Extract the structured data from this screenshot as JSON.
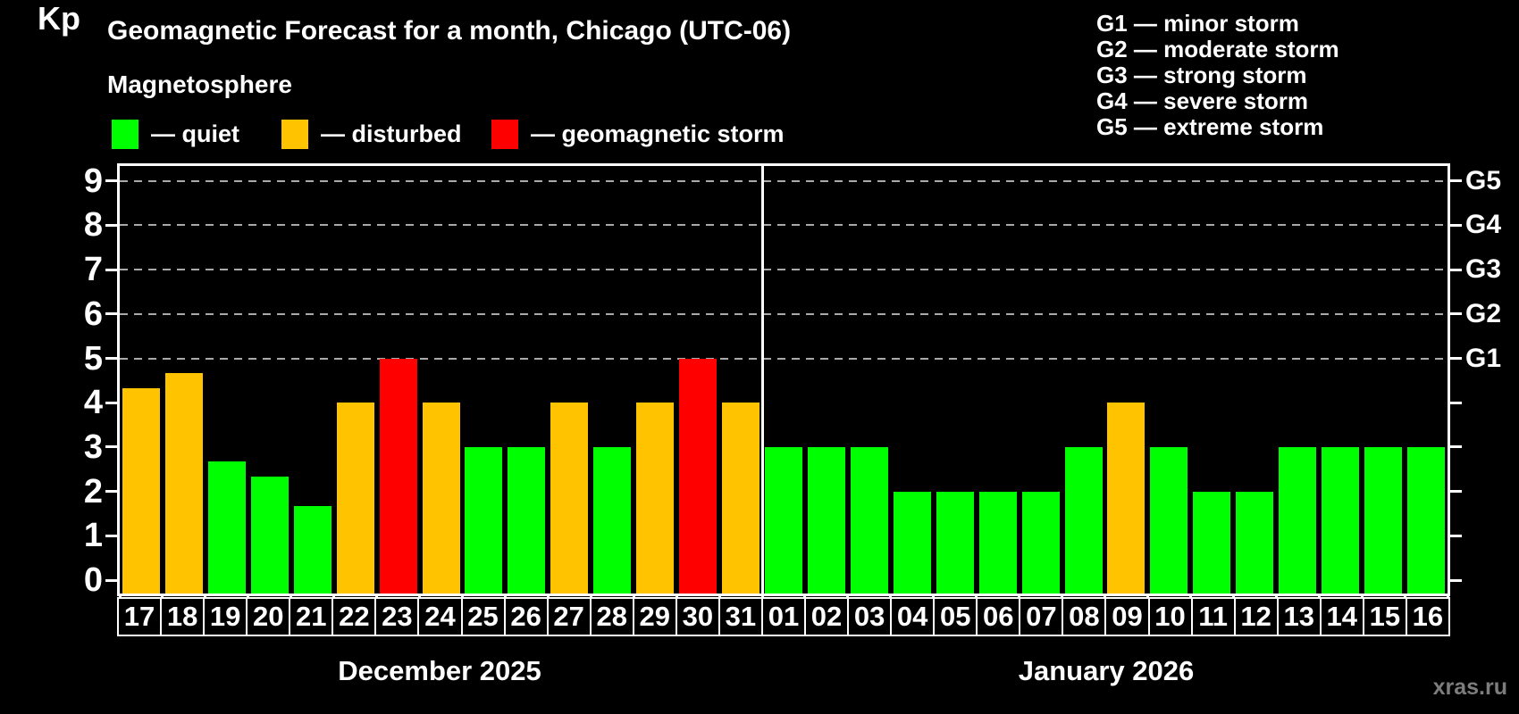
{
  "header": {
    "title": "Geomagnetic Forecast for a month, Chicago (UTC-06)",
    "subtitle": "Magnetosphere"
  },
  "legend": {
    "items": [
      {
        "name": "quiet",
        "label": "— quiet",
        "color": "#00ff00",
        "x": 125
      },
      {
        "name": "disturbed",
        "label": "— disturbed",
        "color": "#ffc300",
        "x": 315
      },
      {
        "name": "storm",
        "label": "— geomagnetic storm",
        "color": "#ff0000",
        "x": 550
      }
    ]
  },
  "g_legend": [
    "G1 — minor storm",
    "G2 — moderate storm",
    "G3 — strong storm",
    "G4 — severe storm",
    "G5 — extreme storm"
  ],
  "watermark": "xras.ru",
  "chart_data": {
    "type": "bar",
    "title": "Geomagnetic Forecast for a month, Chicago (UTC-06)",
    "ylabel": "Kp",
    "ylim": [
      0,
      9
    ],
    "yticks": [
      0,
      1,
      2,
      3,
      4,
      5,
      6,
      7,
      8,
      9
    ],
    "grid_levels": [
      5,
      6,
      7,
      8,
      9
    ],
    "right_axis": {
      "5": "G1",
      "6": "G2",
      "7": "G3",
      "8": "G4",
      "9": "G5"
    },
    "grid": "dashed-horizontal-at-storm-levels",
    "legend_position": "top-left",
    "colors": {
      "quiet": "#00ff00",
      "disturbed": "#ffc300",
      "storm": "#ff0000"
    },
    "months": [
      {
        "label": "December 2025",
        "days": [
          {
            "day": "17",
            "kp": 4.33,
            "level": "disturbed"
          },
          {
            "day": "18",
            "kp": 4.67,
            "level": "disturbed"
          },
          {
            "day": "19",
            "kp": 2.67,
            "level": "quiet"
          },
          {
            "day": "20",
            "kp": 2.33,
            "level": "quiet"
          },
          {
            "day": "21",
            "kp": 1.67,
            "level": "quiet"
          },
          {
            "day": "22",
            "kp": 4,
            "level": "disturbed"
          },
          {
            "day": "23",
            "kp": 5,
            "level": "storm"
          },
          {
            "day": "24",
            "kp": 4,
            "level": "disturbed"
          },
          {
            "day": "25",
            "kp": 3,
            "level": "quiet"
          },
          {
            "day": "26",
            "kp": 3,
            "level": "quiet"
          },
          {
            "day": "27",
            "kp": 4,
            "level": "disturbed"
          },
          {
            "day": "28",
            "kp": 3,
            "level": "quiet"
          },
          {
            "day": "29",
            "kp": 4,
            "level": "disturbed"
          },
          {
            "day": "30",
            "kp": 5,
            "level": "storm"
          },
          {
            "day": "31",
            "kp": 4,
            "level": "disturbed"
          }
        ]
      },
      {
        "label": "January 2026",
        "days": [
          {
            "day": "01",
            "kp": 3,
            "level": "quiet"
          },
          {
            "day": "02",
            "kp": 3,
            "level": "quiet"
          },
          {
            "day": "03",
            "kp": 3,
            "level": "quiet"
          },
          {
            "day": "04",
            "kp": 2,
            "level": "quiet"
          },
          {
            "day": "05",
            "kp": 2,
            "level": "quiet"
          },
          {
            "day": "06",
            "kp": 2,
            "level": "quiet"
          },
          {
            "day": "07",
            "kp": 2,
            "level": "quiet"
          },
          {
            "day": "08",
            "kp": 3,
            "level": "quiet"
          },
          {
            "day": "09",
            "kp": 4,
            "level": "disturbed"
          },
          {
            "day": "10",
            "kp": 3,
            "level": "quiet"
          },
          {
            "day": "11",
            "kp": 2,
            "level": "quiet"
          },
          {
            "day": "12",
            "kp": 2,
            "level": "quiet"
          },
          {
            "day": "13",
            "kp": 3,
            "level": "quiet"
          },
          {
            "day": "14",
            "kp": 3,
            "level": "quiet"
          },
          {
            "day": "15",
            "kp": 3,
            "level": "quiet"
          },
          {
            "day": "16",
            "kp": 3,
            "level": "quiet"
          }
        ]
      }
    ]
  }
}
